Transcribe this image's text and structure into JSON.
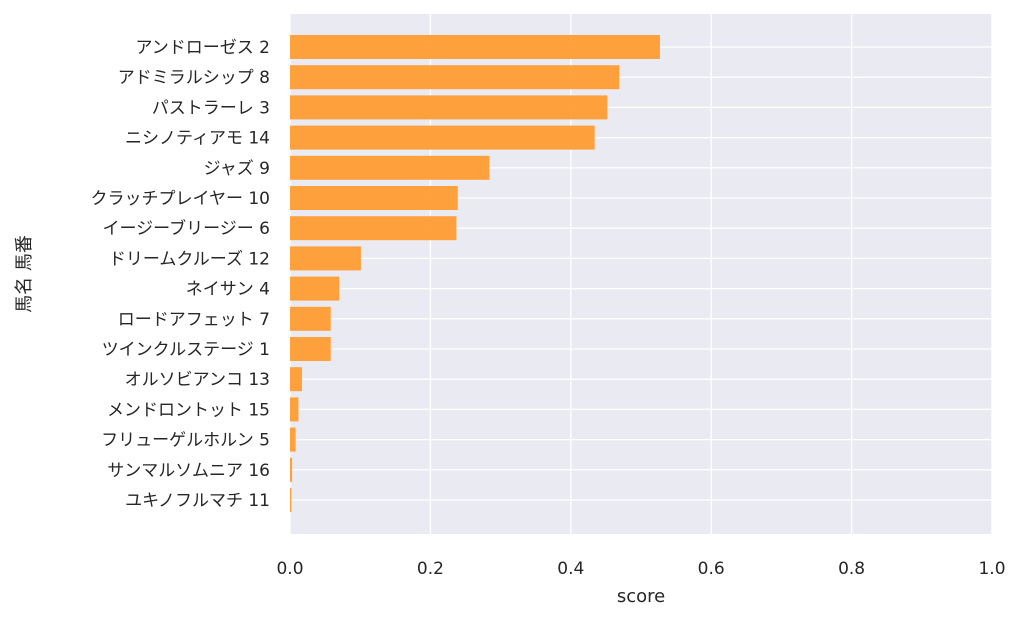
{
  "chart_data": {
    "type": "bar",
    "orientation": "horizontal",
    "categories": [
      "アンドローゼス 2",
      "アドミラルシップ 8",
      "パストラーレ 3",
      "ニシノティアモ 14",
      "ジャズ 9",
      "クラッチプレイヤー 10",
      "イージーブリージー 6",
      "ドリームクルーズ 12",
      "ネイサン 4",
      "ロードアフェット 7",
      "ツインクルステージ 1",
      "オルソビアンコ 13",
      "メンドロントット 15",
      "フリューゲルホルン 5",
      "サンマルソムニア 16",
      "ユキノフルマチ 11"
    ],
    "values": [
      0.527,
      0.469,
      0.452,
      0.434,
      0.284,
      0.239,
      0.237,
      0.101,
      0.07,
      0.058,
      0.058,
      0.017,
      0.012,
      0.008,
      0.003,
      0.002
    ],
    "xlabel": "score",
    "ylabel": "馬名 馬番",
    "xlim": [
      0,
      1.0
    ],
    "xticks": [
      "0.0",
      "0.2",
      "0.4",
      "0.6",
      "0.8",
      "1.0"
    ],
    "grid": true,
    "colors": {
      "bar": "#ff9a2e",
      "plot_bg": "#eaeaf2",
      "grid": "#ffffff",
      "text": "#262626"
    }
  }
}
